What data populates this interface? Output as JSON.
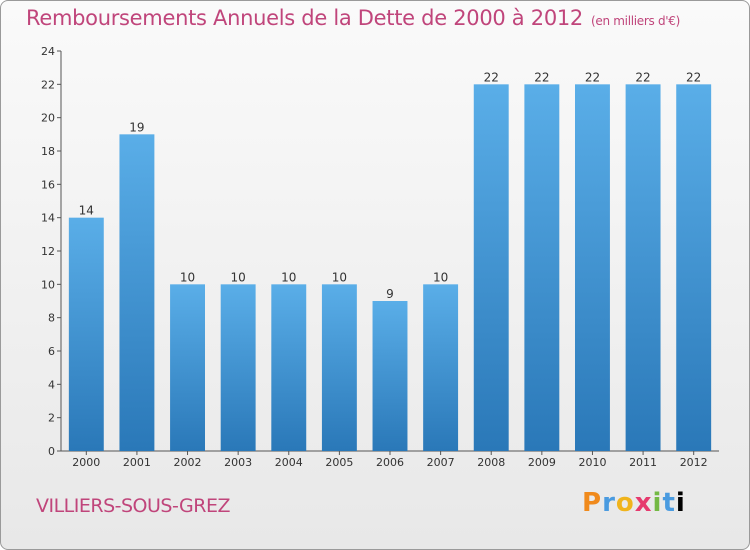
{
  "header": {
    "title": "Remboursements Annuels de la Dette de 2000 à 2012",
    "subtitle": "(en milliers d'€)"
  },
  "footer": {
    "commune": "VILLIERS-SOUS-GREZ",
    "logo_letters": [
      "P",
      "r",
      "o",
      "x",
      "i",
      "t",
      "i"
    ]
  },
  "colors": {
    "title": "#c0457b",
    "bar_top": "#5aaee8",
    "bar_bottom": "#2a78b8"
  },
  "chart_data": {
    "type": "bar",
    "title": "Remboursements Annuels de la Dette de 2000 à 2012",
    "subtitle": "(en milliers d'€)",
    "xlabel": "",
    "ylabel": "",
    "categories": [
      "2000",
      "2001",
      "2002",
      "2003",
      "2004",
      "2005",
      "2006",
      "2007",
      "2008",
      "2009",
      "2010",
      "2011",
      "2012"
    ],
    "values": [
      14,
      19,
      10,
      10,
      10,
      10,
      9,
      10,
      22,
      22,
      22,
      22,
      22
    ],
    "ylim": [
      0,
      24
    ],
    "yticks": [
      0,
      2,
      4,
      6,
      8,
      10,
      12,
      14,
      16,
      18,
      20,
      22,
      24
    ],
    "grid": false,
    "legend": "none"
  }
}
